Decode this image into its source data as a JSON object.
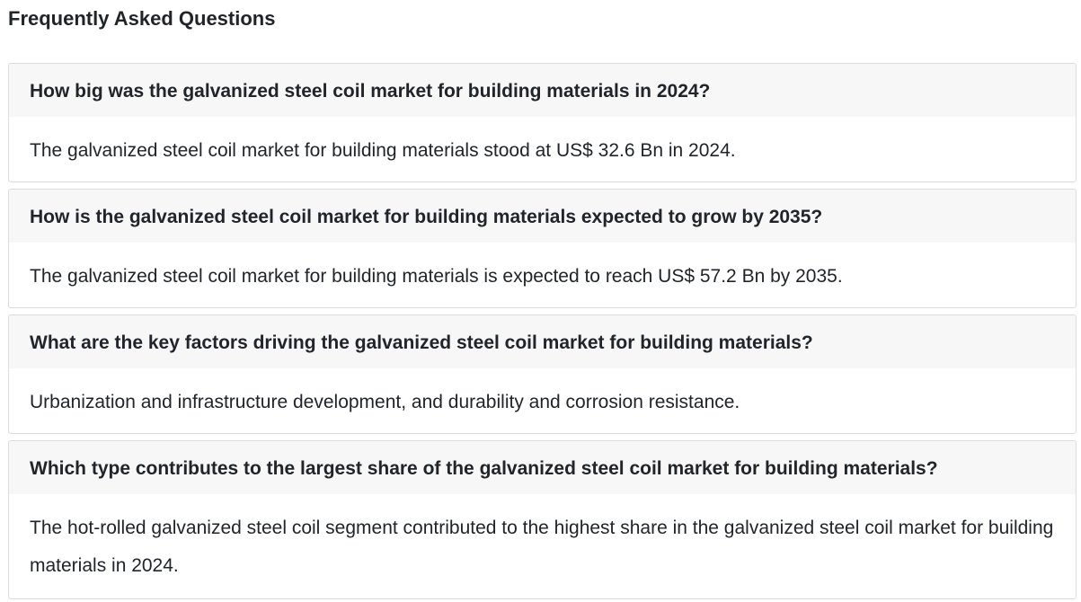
{
  "faq": {
    "title": "Frequently Asked Questions",
    "items": [
      {
        "question": "How big was the galvanized steel coil market for building materials in 2024?",
        "answer": "The galvanized steel coil market for building materials stood at US$ 32.6 Bn in 2024."
      },
      {
        "question": "How is the galvanized steel coil market for building materials expected to grow by 2035?",
        "answer": "The galvanized steel coil market for building materials is expected to reach US$ 57.2 Bn by 2035."
      },
      {
        "question": "What are the key factors driving the galvanized steel coil market for building materials?",
        "answer": "Urbanization and infrastructure development, and durability and corrosion resistance."
      },
      {
        "question": "Which type contributes to the largest share of the galvanized steel coil market for building materials?",
        "answer": "The hot-rolled galvanized steel coil segment contributed to the highest share in the galvanized steel coil market for building materials in 2024."
      }
    ]
  },
  "colors": {
    "question_background": "#f7f7f7",
    "card_border": "#dcdcdc",
    "text": "#212529"
  }
}
